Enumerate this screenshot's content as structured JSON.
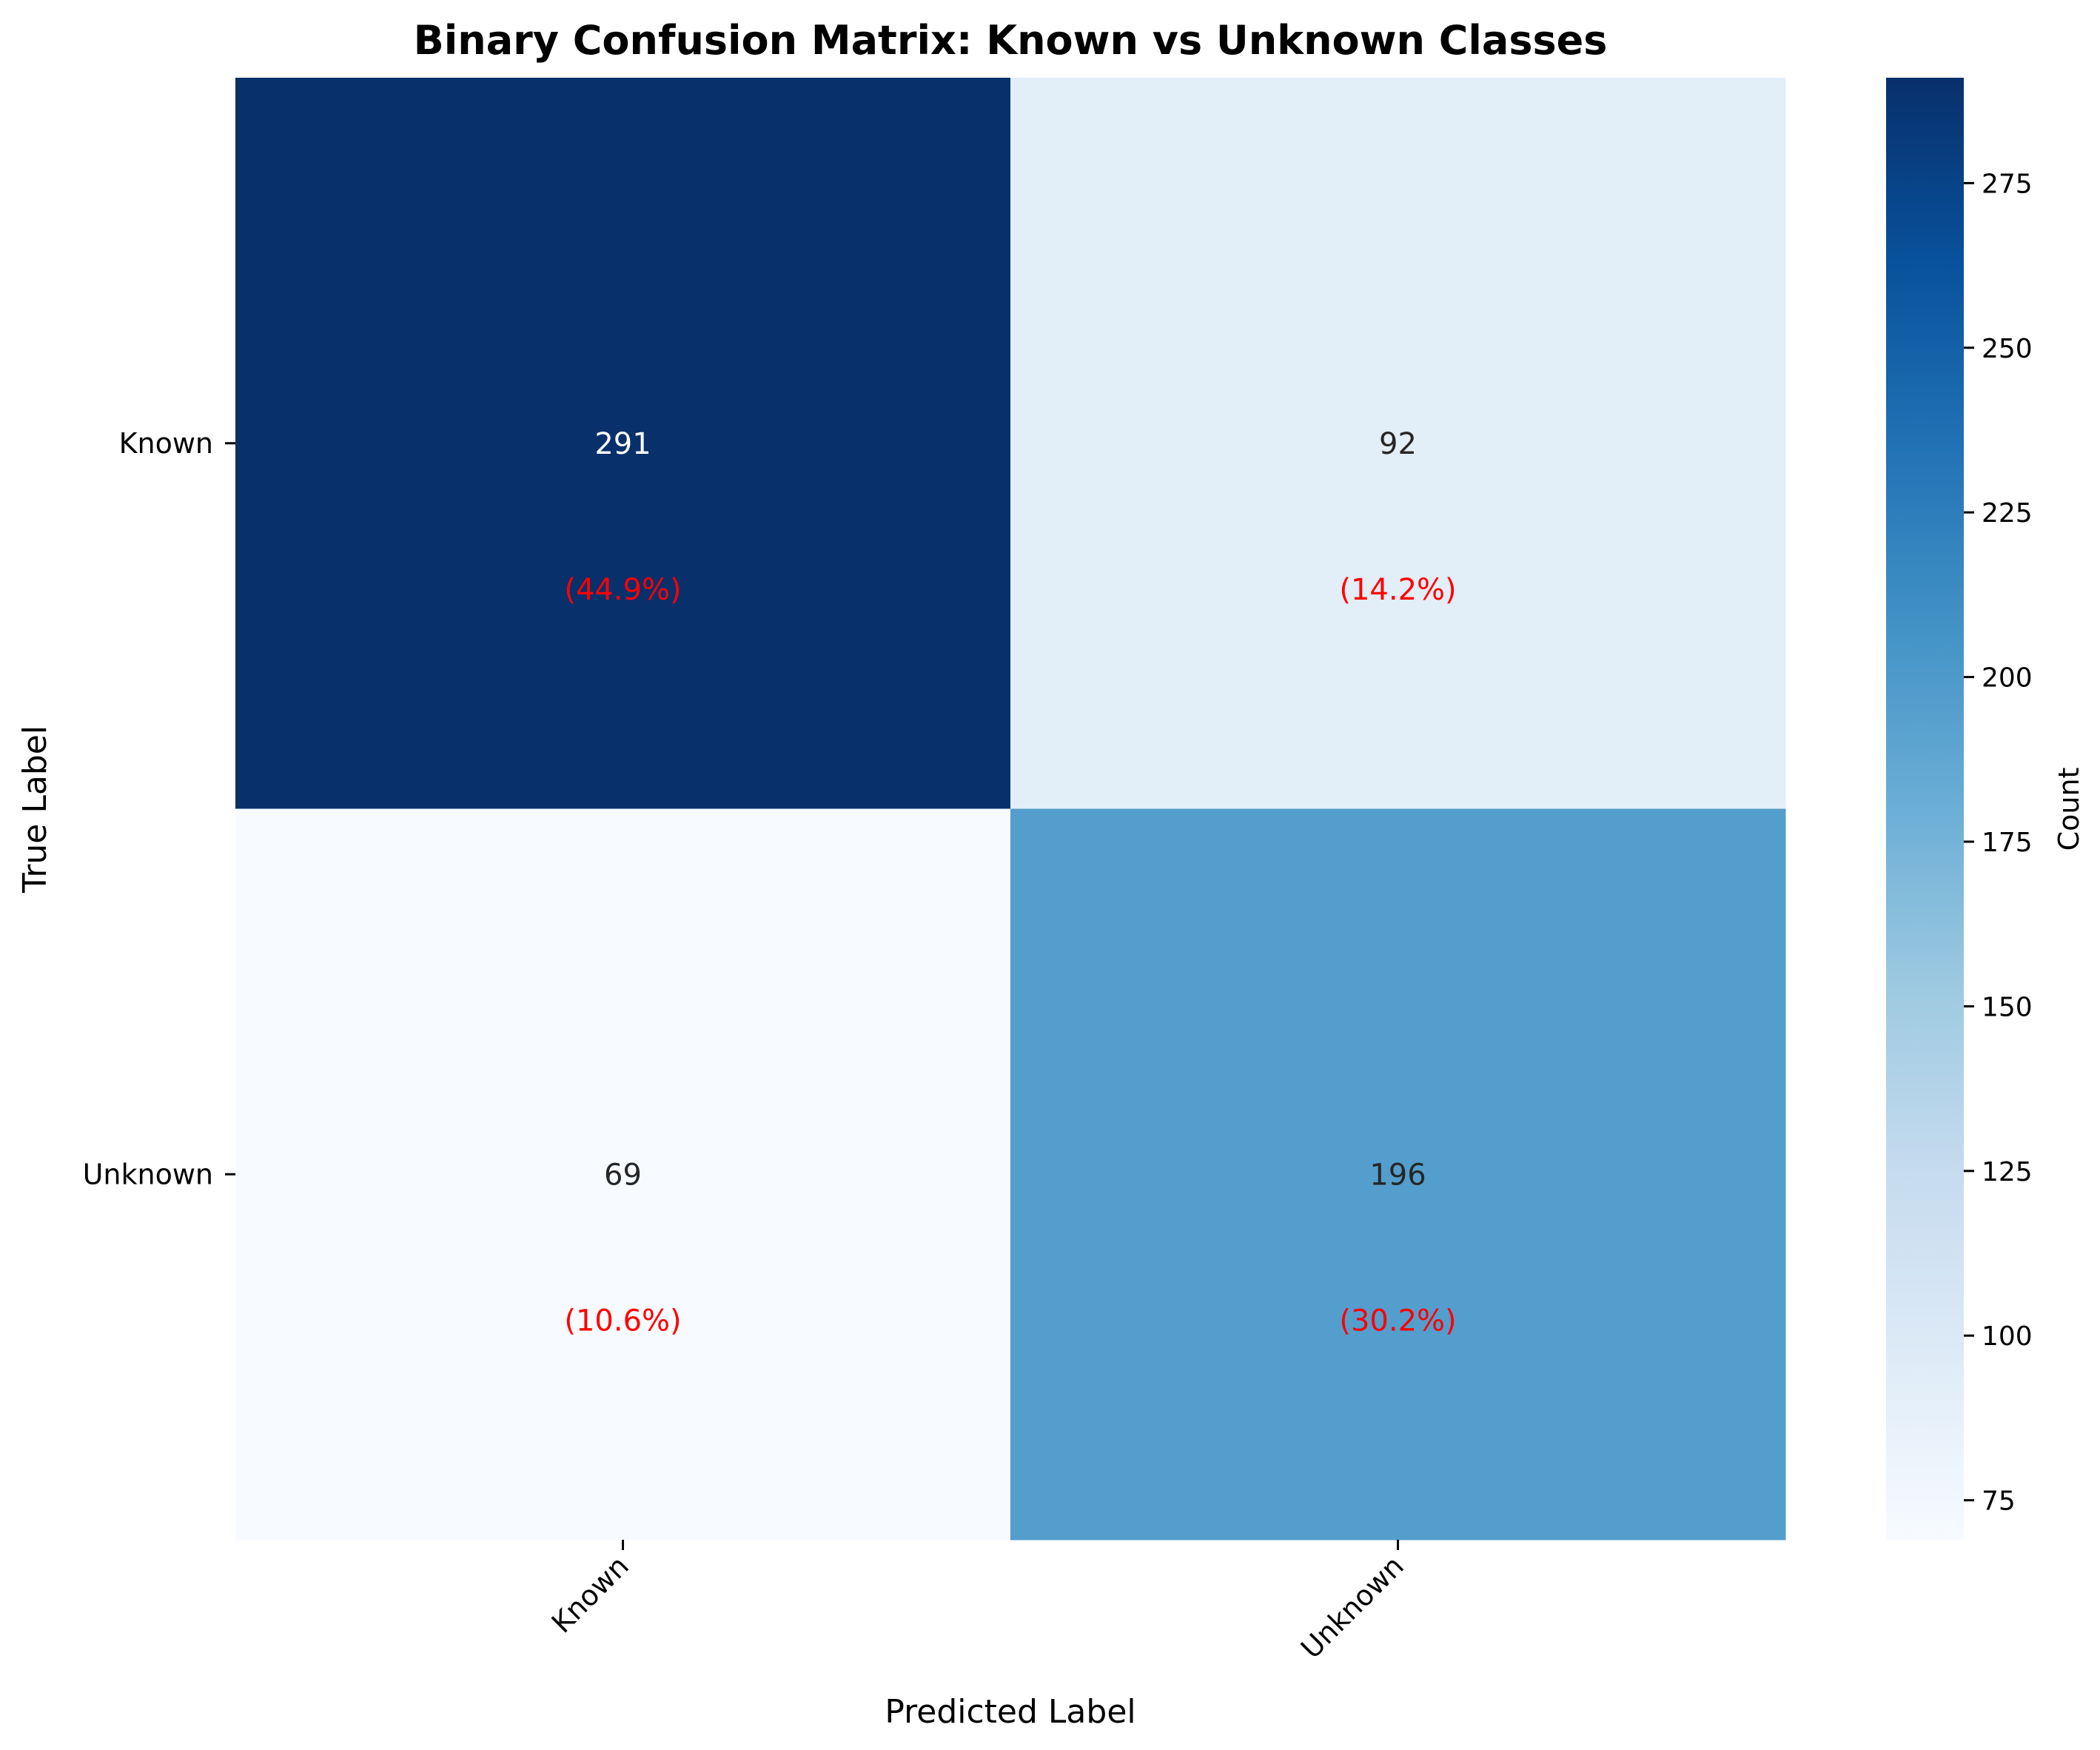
{
  "chart_data": {
    "type": "heatmap",
    "title": "Binary Confusion Matrix: Known vs Unknown Classes",
    "xlabel": "Predicted Label",
    "ylabel": "True Label",
    "x_categories": [
      "Known",
      "Unknown"
    ],
    "y_categories": [
      "Known",
      "Unknown"
    ],
    "values": [
      [
        291,
        92
      ],
      [
        69,
        196
      ]
    ],
    "percentages": [
      [
        "(44.9%)",
        "(14.2%)"
      ],
      [
        "(10.6%)",
        "(30.2%)"
      ]
    ],
    "colorbar": {
      "label": "Count",
      "range": [
        69,
        291
      ],
      "ticks": [
        75,
        100,
        125,
        150,
        175,
        200,
        225,
        250,
        275
      ],
      "colormap": "Blues"
    },
    "annotation_colors": {
      "count_on_dark": "#ffffff",
      "count_on_light": "#262626",
      "percentage": "#ff0000"
    }
  }
}
